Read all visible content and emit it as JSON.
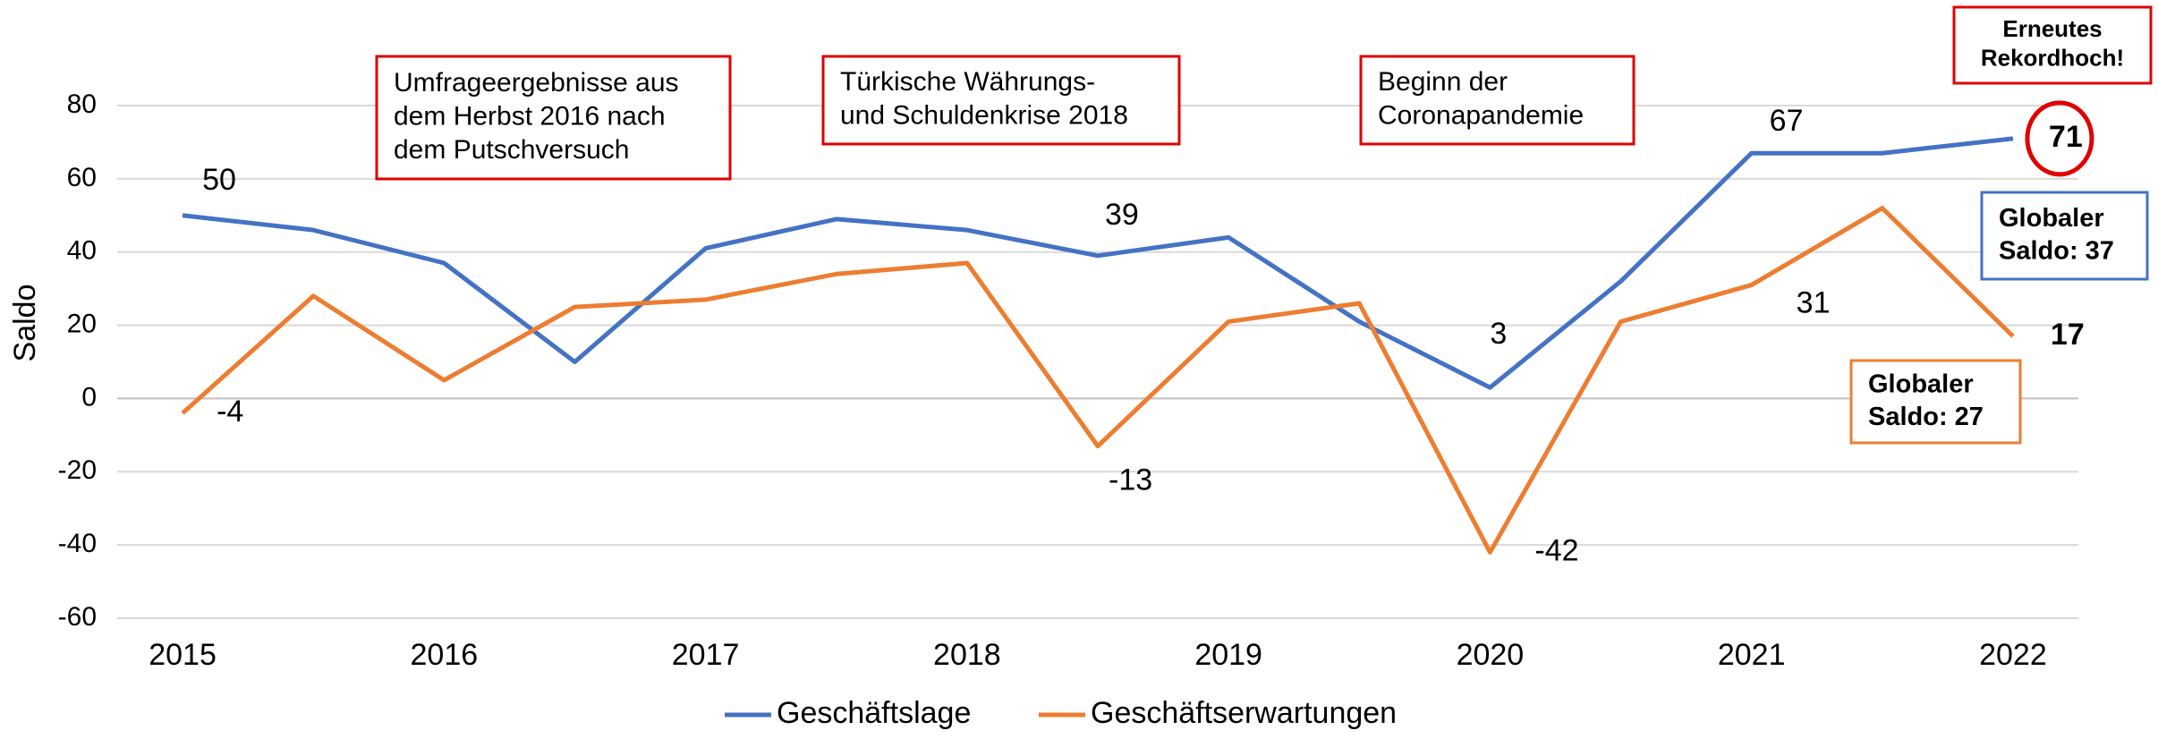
{
  "chart_data": {
    "type": "line",
    "y_label": "Saldo",
    "x": [
      2015,
      2015.5,
      2016,
      2016.5,
      2017,
      2017.5,
      2018,
      2018.5,
      2019,
      2019.5,
      2020,
      2020.5,
      2021,
      2021.5,
      2022
    ],
    "xlim": [
      2014.75,
      2022.25
    ],
    "xticks": [
      2015,
      2016,
      2017,
      2018,
      2019,
      2020,
      2021,
      2022
    ],
    "ylim": [
      -60,
      80
    ],
    "yticks": [
      -60,
      -40,
      -20,
      0,
      20,
      40,
      60,
      80
    ],
    "grid": true,
    "legend": "bottom",
    "series": [
      {
        "name": "Geschäftslage",
        "color": "#4472c4",
        "values": [
          50,
          46,
          37,
          10,
          41,
          49,
          46,
          39,
          44,
          21,
          3,
          32,
          67,
          67,
          71
        ],
        "value_labels": [
          50,
          null,
          null,
          null,
          null,
          null,
          null,
          39,
          null,
          null,
          3,
          null,
          67,
          null,
          71
        ]
      },
      {
        "name": "Geschäftserwartungen",
        "color": "#ed7d31",
        "values": [
          -4,
          28,
          5,
          25,
          27,
          34,
          37,
          -13,
          21,
          26,
          -42,
          21,
          31,
          52,
          17
        ],
        "value_labels": [
          -4,
          null,
          null,
          null,
          null,
          null,
          null,
          -13,
          null,
          null,
          -42,
          null,
          31,
          null,
          17
        ]
      }
    ],
    "annotations": [
      {
        "lines": [
          "Umfrageergebnisse aus",
          "dem Herbst 2016 nach",
          "dem Putschversuch"
        ],
        "border": "#e00000"
      },
      {
        "lines": [
          "Türkische Währungs-",
          "und Schuldenkrise 2018"
        ],
        "border": "#e00000"
      },
      {
        "lines": [
          "Beginn der",
          "Coronapandemie"
        ],
        "border": "#e00000"
      },
      {
        "lines": [
          "Erneutes",
          "Rekordhoch!"
        ],
        "border": "#e00000"
      },
      {
        "lines": [
          "Globaler",
          "Saldo: 37"
        ],
        "border": "#4472c4"
      },
      {
        "lines": [
          "Globaler",
          "Saldo: 27"
        ],
        "border": "#ed7d31"
      }
    ]
  }
}
